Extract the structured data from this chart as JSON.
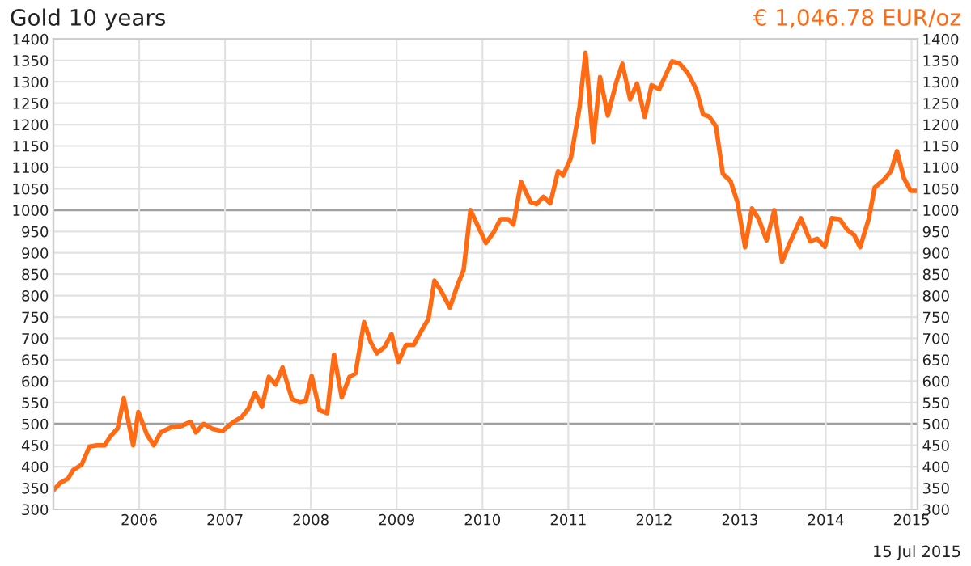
{
  "chart_data": {
    "type": "line",
    "title": "Gold 10 years",
    "subtitle": "€ 1,046.78 EUR/oz",
    "annotations": [
      "15 Jul 2015"
    ],
    "x": [
      2005.01,
      2005.08,
      2005.17,
      2005.23,
      2005.33,
      2005.42,
      2005.51,
      2005.6,
      2005.66,
      2005.75,
      2005.82,
      2005.93,
      2005.99,
      2006.09,
      2006.17,
      2006.25,
      2006.37,
      2006.49,
      2006.6,
      2006.66,
      2006.75,
      2006.86,
      2006.97,
      2007.1,
      2007.19,
      2007.27,
      2007.35,
      2007.43,
      2007.51,
      2007.59,
      2007.67,
      2007.78,
      2007.87,
      2007.94,
      2008.01,
      2008.1,
      2008.19,
      2008.27,
      2008.36,
      2008.45,
      2008.52,
      2008.62,
      2008.7,
      2008.77,
      2008.86,
      2008.94,
      2009.02,
      2009.11,
      2009.2,
      2009.28,
      2009.37,
      2009.44,
      2009.52,
      2009.62,
      2009.71,
      2009.78,
      2009.86,
      2010.04,
      2010.13,
      2010.21,
      2010.3,
      2010.36,
      2010.45,
      2010.56,
      2010.63,
      2010.71,
      2010.79,
      2010.88,
      2010.94,
      2011.03,
      2011.13,
      2011.2,
      2011.29,
      2011.37,
      2011.46,
      2011.56,
      2011.63,
      2011.72,
      2011.8,
      2011.89,
      2011.97,
      2012.06,
      2012.13,
      2012.21,
      2012.3,
      2012.39,
      2012.49,
      2012.57,
      2012.64,
      2012.72,
      2012.8,
      2012.89,
      2012.97,
      2013.06,
      2013.14,
      2013.22,
      2013.31,
      2013.4,
      2013.49,
      2013.58,
      2013.71,
      2013.82,
      2013.9,
      2013.99,
      2014.07,
      2014.16,
      2014.25,
      2014.33,
      2014.4,
      2014.5,
      2014.57,
      2014.68,
      2014.76,
      2014.83,
      2014.91,
      2014.99,
      2015.06
    ],
    "series": [
      {
        "color": "#ff6a13",
        "values": [
          347,
          362,
          372,
          392,
          405,
          447,
          450,
          450,
          470,
          490,
          560,
          450,
          528,
          475,
          450,
          480,
          492,
          495,
          505,
          480,
          500,
          488,
          483,
          505,
          515,
          535,
          573,
          540,
          610,
          592,
          632,
          558,
          550,
          553,
          612,
          532,
          525,
          662,
          562,
          610,
          618,
          738,
          690,
          665,
          680,
          710,
          645,
          685,
          685,
          715,
          745,
          835,
          810,
          772,
          825,
          860,
          1000,
          923,
          948,
          979,
          979,
          966,
          1066,
          1019,
          1014,
          1031,
          1016,
          1091,
          1081,
          1122,
          1240,
          1368,
          1159,
          1311,
          1221,
          1300,
          1342,
          1259,
          1296,
          1218,
          1292,
          1283,
          1314,
          1348,
          1342,
          1321,
          1283,
          1224,
          1219,
          1196,
          1085,
          1068,
          1019,
          913,
          1004,
          979,
          929,
          1000,
          879,
          923,
          981,
          927,
          933,
          914,
          981,
          979,
          954,
          942,
          913,
          979,
          1053,
          1072,
          1091,
          1138,
          1075,
          1045,
          1045
        ]
      }
    ],
    "xlim": [
      2005.0,
      2015.07
    ],
    "xticks": [
      2006,
      2007,
      2008,
      2009,
      2010,
      2011,
      2012,
      2013,
      2014,
      2015
    ],
    "ylim": [
      300,
      1400
    ],
    "yticks": [
      300,
      350,
      400,
      450,
      500,
      550,
      600,
      650,
      700,
      750,
      800,
      850,
      900,
      950,
      1000,
      1050,
      1100,
      1150,
      1200,
      1250,
      1300,
      1350,
      1400
    ],
    "y2lim": [
      300,
      1400
    ],
    "y2ticks": [
      300,
      350,
      400,
      450,
      500,
      550,
      600,
      650,
      700,
      750,
      800,
      850,
      900,
      950,
      1000,
      1050,
      1100,
      1150,
      1200,
      1250,
      1300,
      1350,
      1400
    ],
    "grid": true,
    "legend": false,
    "marker": "none",
    "line_style": "solid"
  }
}
